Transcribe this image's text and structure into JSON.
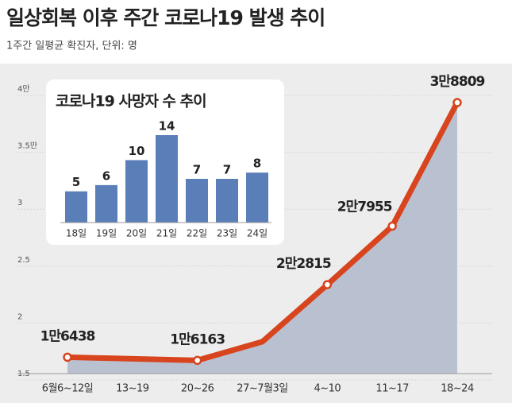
{
  "title": "일상회복 이후 주간 코로나19 발생 추이",
  "subtitle": "1주간 일평균 확진자, 단위: 명",
  "chart_data": [
    {
      "type": "area-line",
      "categories": [
        "6월6~12일",
        "13~19",
        "20~26",
        "27~7월3일",
        "4~10",
        "11~17",
        "18~24"
      ],
      "values": [
        1.6438,
        1.63,
        1.6163,
        1.78,
        2.2815,
        2.7955,
        3.8809
      ],
      "value_labels": [
        "1만6438",
        null,
        "1만6163",
        null,
        "2만2815",
        "2만7955",
        "3만8809"
      ],
      "color": "#d8441d",
      "fill": "#b9c0cf",
      "ylim": [
        1.5,
        4
      ],
      "yticks": [
        1.5,
        2,
        2.5,
        3,
        {
          "value": 3.5,
          "label": "3.5만"
        },
        {
          "value": 4,
          "label": "4만"
        }
      ],
      "grid": true
    },
    {
      "type": "bar",
      "title": "코로나19 사망자 수 추이",
      "categories": [
        "18일",
        "19일",
        "20일",
        "21일",
        "22일",
        "23일",
        "24일"
      ],
      "values": [
        5,
        6,
        10,
        14,
        7,
        7,
        8
      ],
      "color": "#5a7fb8"
    }
  ]
}
